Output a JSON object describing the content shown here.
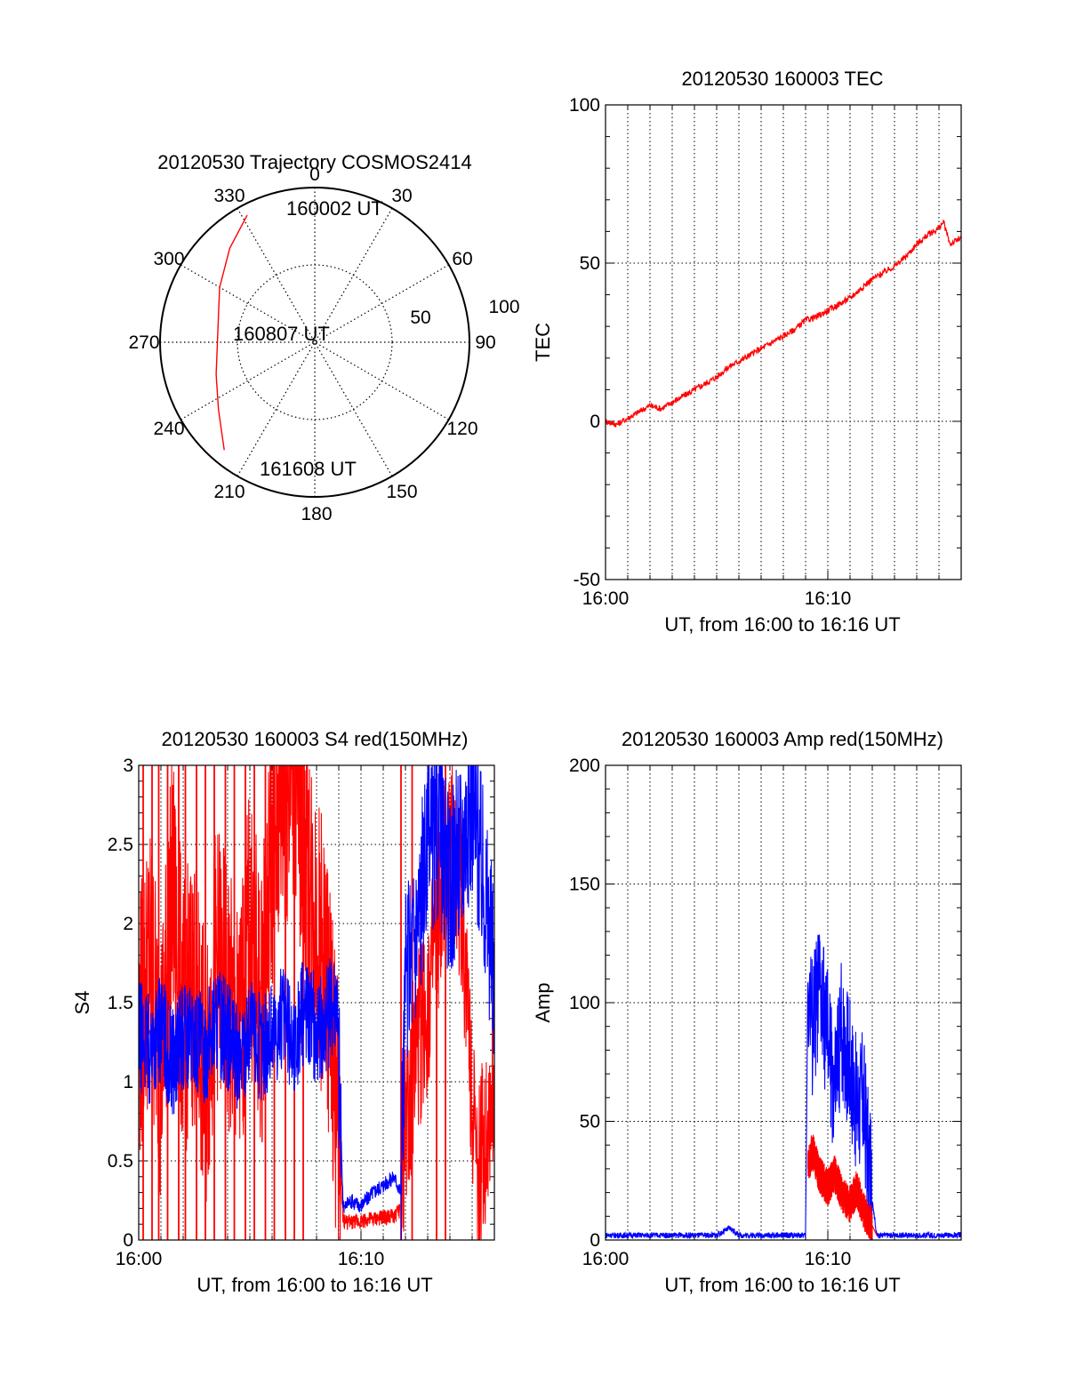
{
  "chart_data": [
    {
      "type": "polar",
      "title": "20120530 Trajectory COSMOS2414",
      "angle_labels": [
        "0",
        "30",
        "60",
        "90",
        "120",
        "150",
        "180",
        "210",
        "240",
        "270",
        "300",
        "330"
      ],
      "radius_labels": [
        "50",
        "100"
      ],
      "rlim": [
        0,
        100
      ],
      "grid": true,
      "series": [
        {
          "color": "#ff0000",
          "points": [
            {
              "az": 332,
              "r": 93
            },
            {
              "az": 318,
              "r": 82
            },
            {
              "az": 300,
              "r": 71
            },
            {
              "az": 283,
              "r": 64
            },
            {
              "az": 268,
              "r": 63
            },
            {
              "az": 252,
              "r": 67
            },
            {
              "az": 235,
              "r": 76
            },
            {
              "az": 220,
              "r": 91
            }
          ]
        }
      ],
      "annotations": [
        "160002 UT",
        "160807 UT",
        "161608 UT"
      ]
    },
    {
      "type": "line",
      "title": "20120530 160003 TEC",
      "xlabel": "UT, from 16:00 to 16:16 UT",
      "ylabel": "TEC",
      "xlim": [
        0,
        16
      ],
      "ylim": [
        -50,
        100
      ],
      "x_ticks": [
        {
          "v": 0,
          "label": "16:00"
        },
        {
          "v": 10,
          "label": "16:10"
        }
      ],
      "y_ticks": [
        "-50",
        "0",
        "50",
        "100"
      ],
      "grid": true,
      "series": [
        {
          "color": "#ff0000",
          "x": [
            0,
            0.5,
            1,
            1.5,
            2,
            2.5,
            3,
            3.5,
            4,
            4.5,
            5,
            5.5,
            6,
            6.5,
            7,
            7.5,
            8,
            8.5,
            9,
            9.5,
            10,
            10.5,
            11,
            11.5,
            12,
            12.5,
            13,
            13.5,
            14,
            14.5,
            15,
            15.2,
            15.5,
            16
          ],
          "values": [
            0,
            -1,
            1,
            3,
            5,
            4,
            6,
            8,
            10,
            12,
            14,
            17,
            19,
            21,
            23,
            25,
            27,
            29,
            32,
            33,
            35,
            37,
            39,
            42,
            45,
            47,
            49,
            52,
            56,
            59,
            61,
            63,
            56,
            58
          ]
        }
      ]
    },
    {
      "type": "line",
      "title": "20120530 160003 S4 red(150MHz)",
      "xlabel": "UT, from 16:00 to 16:16 UT",
      "ylabel": "S4",
      "xlim": [
        0,
        16
      ],
      "ylim": [
        0,
        3
      ],
      "x_ticks": [
        {
          "v": 0,
          "label": "16:00"
        },
        {
          "v": 10,
          "label": "16:10"
        }
      ],
      "y_ticks": [
        "0",
        "0.5",
        "1",
        "1.5",
        "2",
        "2.5",
        "3"
      ],
      "grid": true,
      "series": [
        {
          "color": "#ff0000",
          "x": [
            0,
            0.5,
            1,
            1.5,
            2,
            2.5,
            3,
            3.5,
            4,
            4.5,
            5,
            5.5,
            6,
            6.5,
            7,
            7.5,
            8,
            8.5,
            8.9,
            9.2,
            9.5,
            10,
            10.5,
            11,
            11.5,
            11.8,
            12,
            12.5,
            13,
            13.5,
            14,
            14.5,
            15,
            15.2,
            15.5,
            16
          ],
          "values": [
            1.3,
            1.8,
            1.1,
            2.2,
            1.4,
            1.6,
            1.0,
            1.8,
            1.5,
            1.2,
            2.0,
            1.4,
            2.5,
            2.8,
            3.0,
            2.4,
            2.0,
            1.6,
            0.9,
            0.12,
            0.11,
            0.12,
            0.13,
            0.14,
            0.15,
            0.2,
            0.8,
            1.2,
            1.5,
            2.0,
            2.5,
            2.2,
            1.0,
            0.3,
            0.6,
            1.0
          ],
          "spikes_x": [
            0.2,
            0.6,
            0.9,
            1.3,
            1.8,
            2.1,
            2.6,
            3.0,
            3.4,
            3.9,
            4.3,
            4.8,
            5.2,
            5.7,
            6.1,
            6.6,
            7.0,
            7.4,
            11.8,
            12.3,
            13.4,
            13.8
          ]
        },
        {
          "color": "#0000ff",
          "x": [
            0,
            0.5,
            1,
            1.5,
            2,
            2.5,
            3,
            3.5,
            4,
            4.5,
            5,
            5.5,
            6,
            6.5,
            7,
            7.5,
            8,
            8.5,
            8.9,
            9.2,
            9.5,
            10,
            10.5,
            11,
            11.5,
            11.8,
            12,
            12.5,
            13,
            13.5,
            14,
            14.5,
            15,
            15.5,
            16
          ],
          "values": [
            1.3,
            1.2,
            1.35,
            1.1,
            1.3,
            1.25,
            1.2,
            1.4,
            1.3,
            1.1,
            1.35,
            1.2,
            1.3,
            1.4,
            1.2,
            1.5,
            1.3,
            1.4,
            1.6,
            0.2,
            0.25,
            0.22,
            0.3,
            0.35,
            0.4,
            0.3,
            1.6,
            2.0,
            2.4,
            2.6,
            2.2,
            2.5,
            2.8,
            2.3,
            1.7
          ]
        }
      ]
    },
    {
      "type": "line",
      "title": "20120530 160003 Amp red(150MHz)",
      "xlabel": "UT, from 16:00 to 16:16 UT",
      "ylabel": "Amp",
      "xlim": [
        0,
        16
      ],
      "ylim": [
        0,
        200
      ],
      "x_ticks": [
        {
          "v": 0,
          "label": "16:00"
        },
        {
          "v": 10,
          "label": "16:10"
        }
      ],
      "y_ticks": [
        "0",
        "50",
        "100",
        "150",
        "200"
      ],
      "grid": true,
      "series": [
        {
          "color": "#0000ff",
          "x": [
            0,
            1,
            2,
            3,
            4,
            5,
            5.6,
            6,
            7,
            8,
            9,
            9.1,
            9.3,
            9.6,
            10,
            10.3,
            10.6,
            11,
            11.3,
            11.6,
            11.9,
            12.2,
            12.5,
            13,
            14,
            15,
            16
          ],
          "values": [
            2,
            2,
            2,
            2,
            2,
            2,
            5,
            2,
            2,
            2,
            2,
            110,
            90,
            105,
            85,
            60,
            90,
            75,
            55,
            60,
            25,
            2,
            2,
            2,
            2,
            2,
            2
          ]
        },
        {
          "color": "#ff0000",
          "x": [
            9.1,
            9.3,
            9.6,
            10,
            10.3,
            10.6,
            11,
            11.3,
            11.6,
            11.9,
            12.2
          ],
          "values": [
            30,
            38,
            28,
            22,
            28,
            20,
            15,
            22,
            12,
            8,
            2
          ]
        }
      ]
    }
  ]
}
